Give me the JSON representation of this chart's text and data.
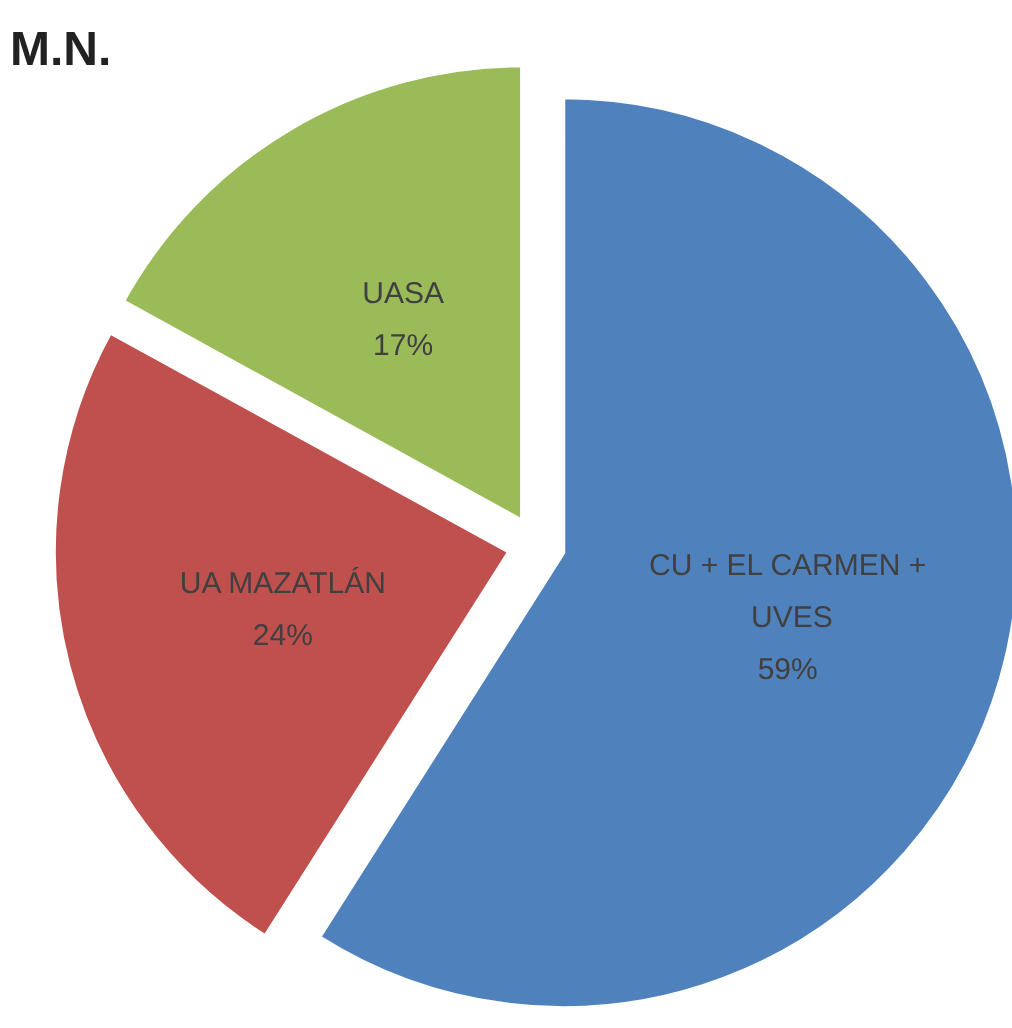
{
  "chart_data": {
    "type": "pie",
    "title": "M.N.",
    "categories": [
      "CU + EL CARMEN + UVES",
      "UA MAZATLÁN",
      "UASA"
    ],
    "values": [
      59,
      24,
      17
    ],
    "colors": [
      "#4f81bd",
      "#c0504d",
      "#9bbb59"
    ],
    "value_labels": [
      "59%",
      "24%",
      "17%"
    ],
    "legend": false
  }
}
